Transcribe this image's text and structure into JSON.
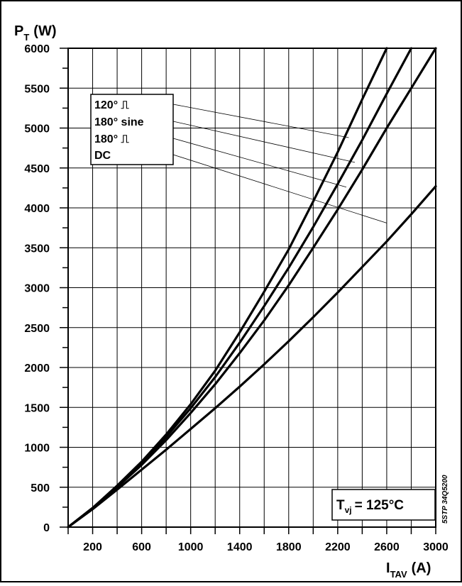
{
  "chart_data": {
    "type": "line",
    "ylabel_main": "P",
    "ylabel_sub": "T",
    "ylabel_unit": "(W)",
    "xlabel_main": "I",
    "xlabel_sub": "TAV",
    "xlabel_unit": "(A)",
    "xlim": [
      0,
      3000
    ],
    "ylim": [
      0,
      6000
    ],
    "grid": true,
    "x_ticks": [
      "200",
      "600",
      "1000",
      "1400",
      "1800",
      "2200",
      "2600",
      "3000"
    ],
    "y_ticks": [
      "0",
      "500",
      "1000",
      "1500",
      "2000",
      "2500",
      "3000",
      "3500",
      "4000",
      "4500",
      "5000",
      "5500",
      "6000"
    ],
    "series": [
      {
        "name": "120° ⎍",
        "x": [
          0,
          200,
          400,
          600,
          800,
          1000,
          1200,
          1400,
          1600,
          1800,
          2000,
          2200,
          2400,
          2600
        ],
        "values": [
          0,
          240,
          520,
          820,
          1160,
          1540,
          1960,
          2440,
          2950,
          3480,
          4080,
          4700,
          5360,
          6000
        ]
      },
      {
        "name": "180° sine",
        "x": [
          0,
          200,
          400,
          600,
          800,
          1000,
          1200,
          1400,
          1600,
          1800,
          2000,
          2200,
          2400,
          2600,
          2800
        ],
        "values": [
          0,
          240,
          510,
          800,
          1130,
          1490,
          1880,
          2310,
          2770,
          3250,
          3760,
          4300,
          4850,
          5430,
          6000
        ]
      },
      {
        "name": "180° ⎍",
        "x": [
          0,
          200,
          400,
          600,
          800,
          1000,
          1200,
          1400,
          1600,
          1800,
          2000,
          2200,
          2400,
          2600,
          2800,
          3000
        ],
        "values": [
          0,
          235,
          500,
          780,
          1090,
          1430,
          1790,
          2180,
          2590,
          3030,
          3500,
          3980,
          4480,
          5000,
          5500,
          6000
        ]
      },
      {
        "name": "DC",
        "x": [
          0,
          200,
          400,
          600,
          800,
          1000,
          1200,
          1400,
          1600,
          1800,
          2000,
          2200,
          2400,
          2600,
          2800,
          3000
        ],
        "values": [
          0,
          225,
          470,
          720,
          970,
          1230,
          1490,
          1760,
          2040,
          2330,
          2630,
          2940,
          3260,
          3580,
          3920,
          4270
        ]
      }
    ],
    "legend_position": "top-left",
    "legend_leader_targets": [
      {
        "x": 2290,
        "y": 4880
      },
      {
        "x": 2340,
        "y": 4570
      },
      {
        "x": 2270,
        "y": 4260
      },
      {
        "x": 2600,
        "y": 3810
      }
    ],
    "annotation_main": "T",
    "annotation_sub": "vj",
    "annotation_value": "= 125°C",
    "side_code": "5STP 34Q5200"
  }
}
